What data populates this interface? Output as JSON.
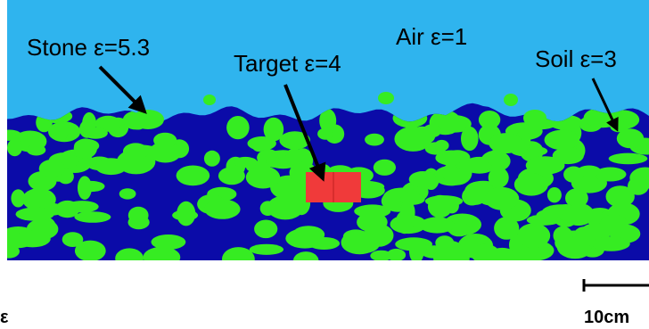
{
  "labels": {
    "air": "Air ε=1",
    "stone": "Stone ε=5.3",
    "target": "Target ε=4",
    "soil": "Soil ε=3"
  },
  "scale_bar": "10cm",
  "corner_mark": "ε"
}
